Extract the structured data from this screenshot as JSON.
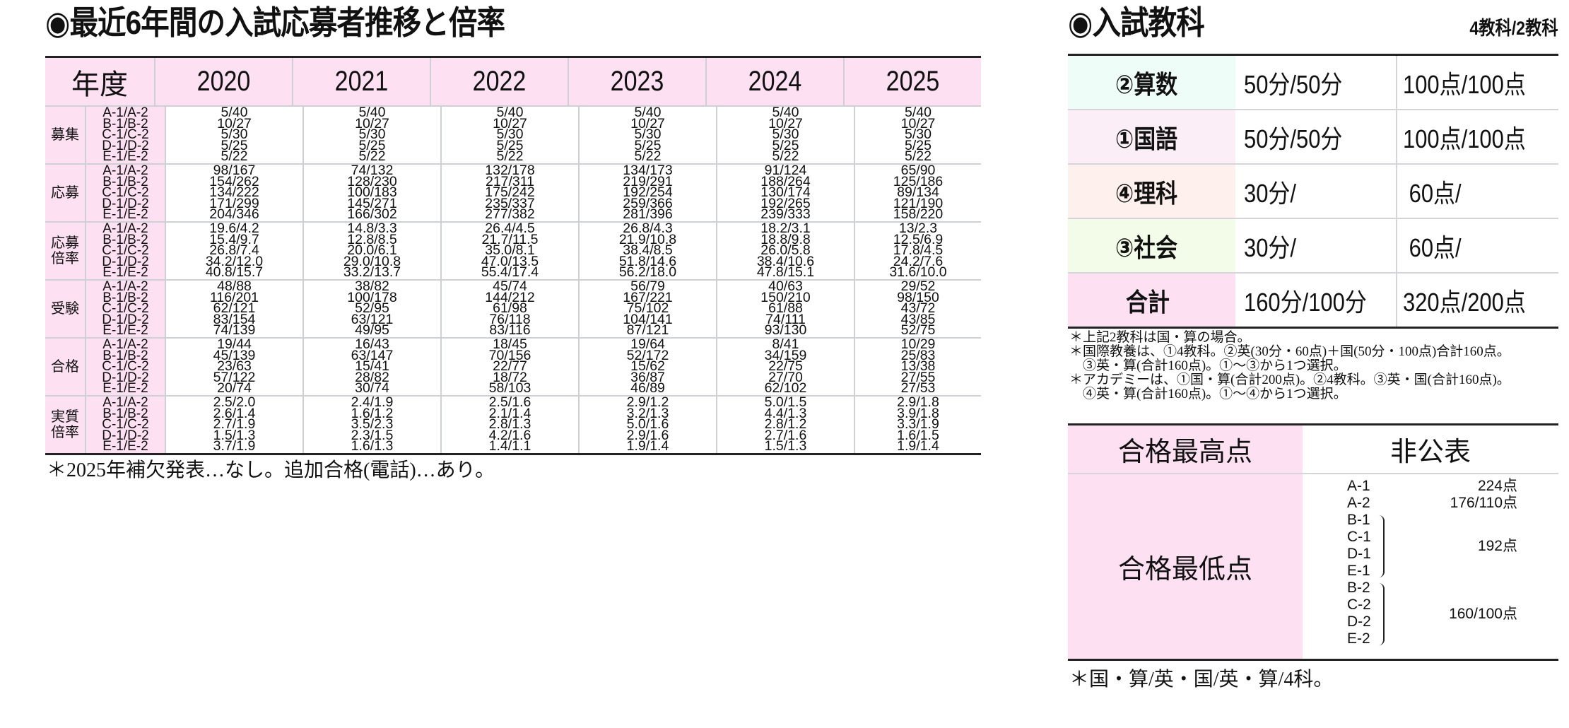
{
  "left": {
    "title": "◉最近6年間の入試応募者推移と倍率",
    "header": {
      "label": "年度",
      "years": [
        "2020",
        "2021",
        "2022",
        "2023",
        "2024",
        "2025"
      ]
    },
    "row_labels": [
      "A-1/A-2",
      "B-1/B-2",
      "C-1/C-2",
      "D-1/D-2",
      "E-1/E-2"
    ],
    "groups": [
      {
        "category": "募集",
        "values": [
          [
            "5/40",
            "10/27",
            "5/30",
            "5/25",
            "5/22"
          ],
          [
            "5/40",
            "10/27",
            "5/30",
            "5/25",
            "5/22"
          ],
          [
            "5/40",
            "10/27",
            "5/30",
            "5/25",
            "5/22"
          ],
          [
            "5/40",
            "10/27",
            "5/30",
            "5/25",
            "5/22"
          ],
          [
            "5/40",
            "10/27",
            "5/30",
            "5/25",
            "5/22"
          ],
          [
            "5/40",
            "10/27",
            "5/30",
            "5/25",
            "5/22"
          ]
        ]
      },
      {
        "category": "応募",
        "values": [
          [
            "98/167",
            "154/262",
            "134/222",
            "171/299",
            "204/346"
          ],
          [
            "74/132",
            "128/230",
            "100/183",
            "145/271",
            "166/302"
          ],
          [
            "132/178",
            "217/311",
            "175/242",
            "235/337",
            "277/382"
          ],
          [
            "134/173",
            "219/291",
            "192/254",
            "259/366",
            "281/396"
          ],
          [
            "91/124",
            "188/264",
            "130/174",
            "192/265",
            "239/333"
          ],
          [
            "65/90",
            "125/186",
            "89/134",
            "121/190",
            "158/220"
          ]
        ]
      },
      {
        "category": "応募\n倍率",
        "values": [
          [
            "19.6/4.2",
            "15.4/9.7",
            "26.8/7.4",
            "34.2/12.0",
            "40.8/15.7"
          ],
          [
            "14.8/3.3",
            "12.8/8.5",
            "20.0/6.1",
            "29.0/10.8",
            "33.2/13.7"
          ],
          [
            "26.4/4.5",
            "21.7/11.5",
            "35.0/8.1",
            "47.0/13.5",
            "55.4/17.4"
          ],
          [
            "26.8/4.3",
            "21.9/10.8",
            "38.4/8.5",
            "51.8/14.6",
            "56.2/18.0"
          ],
          [
            "18.2/3.1",
            "18.8/9.8",
            "26.0/5.8",
            "38.4/10.6",
            "47.8/15.1"
          ],
          [
            "13/2.3",
            "12.5/6.9",
            "17.8/4.5",
            "24.2/7.6",
            "31.6/10.0"
          ]
        ]
      },
      {
        "category": "受験",
        "values": [
          [
            "48/88",
            "116/201",
            "62/121",
            "83/154",
            "74/139"
          ],
          [
            "38/82",
            "100/178",
            "52/95",
            "63/121",
            "49/95"
          ],
          [
            "45/74",
            "144/212",
            "61/98",
            "76/118",
            "83/116"
          ],
          [
            "56/79",
            "167/221",
            "75/102",
            "104/141",
            "87/121"
          ],
          [
            "40/63",
            "150/210",
            "61/88",
            "74/111",
            "93/130"
          ],
          [
            "29/52",
            "98/150",
            "43/72",
            "43/85",
            "52/75"
          ]
        ]
      },
      {
        "category": "合格",
        "values": [
          [
            "19/44",
            "45/139",
            "23/63",
            "57/122",
            "20/74"
          ],
          [
            "16/43",
            "63/147",
            "15/41",
            "28/82",
            "30/74"
          ],
          [
            "18/45",
            "70/156",
            "22/77",
            "18/72",
            "58/103"
          ],
          [
            "19/64",
            "52/172",
            "15/62",
            "36/87",
            "46/89"
          ],
          [
            "8/41",
            "34/159",
            "22/75",
            "27/70",
            "62/102"
          ],
          [
            "10/29",
            "25/83",
            "13/38",
            "27/55",
            "27/53"
          ]
        ]
      },
      {
        "category": "実質\n倍率",
        "values": [
          [
            "2.5/2.0",
            "2.6/1.4",
            "2.7/1.9",
            "1.5/1.3",
            "3.7/1.9"
          ],
          [
            "2.4/1.9",
            "1.6/1.2",
            "3.5/2.3",
            "2.3/1.5",
            "1.6/1.3"
          ],
          [
            "2.5/1.6",
            "2.1/1.4",
            "2.8/1.3",
            "4.2/1.6",
            "1.4/1.1"
          ],
          [
            "2.9/1.2",
            "3.2/1.3",
            "5.0/1.6",
            "2.9/1.6",
            "1.9/1.4"
          ],
          [
            "5.0/1.5",
            "4.4/1.3",
            "2.8/1.2",
            "2.7/1.6",
            "1.5/1.3"
          ],
          [
            "2.9/1.8",
            "3.9/1.8",
            "3.3/1.9",
            "1.6/1.5",
            "1.9/1.4"
          ]
        ]
      }
    ],
    "footnote": "＊2025年補欠発表…なし。追加合格(電話)…あり。"
  },
  "right": {
    "title": "◉入試教科",
    "subtitle": "4教科/2教科",
    "subjects": [
      {
        "name": "②算数",
        "time": "50分/50分",
        "points": "100点/100点",
        "bg": "#effdf9"
      },
      {
        "name": "①国語",
        "time": "50分/50分",
        "points": "100点/100点",
        "bg": "#fbeef7"
      },
      {
        "name": "④理科",
        "time": "30分/",
        "points": " 60点/",
        "bg": "#fef0ec"
      },
      {
        "name": "③社会",
        "time": "30分/",
        "points": " 60点/",
        "bg": "#f3fce9"
      },
      {
        "name": "合計",
        "time": "160分/100分",
        "points": "320点/200点",
        "bg": "#fde0f2"
      }
    ],
    "notes": [
      "＊上記2教科は国・算の場合。",
      "＊国際教養は、①4教科。②英(30分・60点)＋国(50分・100点)合計160点。",
      "　③英・算(合計160点)。①〜③から1つ選択。",
      "＊アカデミーは、①国・算(合計200点)。②4教科。③英・国(合計160点)。",
      "　④英・算(合計160点)。①〜④から1つ選択。"
    ],
    "max_score": {
      "label": "合格最高点",
      "value": "非公表"
    },
    "min_score": {
      "label": "合格最低点",
      "entries": [
        {
          "exam": "A-1",
          "score": "224点"
        },
        {
          "exam": "A-2",
          "score": "176/110点"
        }
      ],
      "group1": {
        "exams": [
          "B-1",
          "C-1",
          "D-1",
          "E-1"
        ],
        "score": "192点"
      },
      "group2": {
        "exams": [
          "B-2",
          "C-2",
          "D-2",
          "E-2"
        ],
        "score": "160/100点"
      }
    },
    "footnote": "＊国・算/英・国/英・算/4科。"
  }
}
